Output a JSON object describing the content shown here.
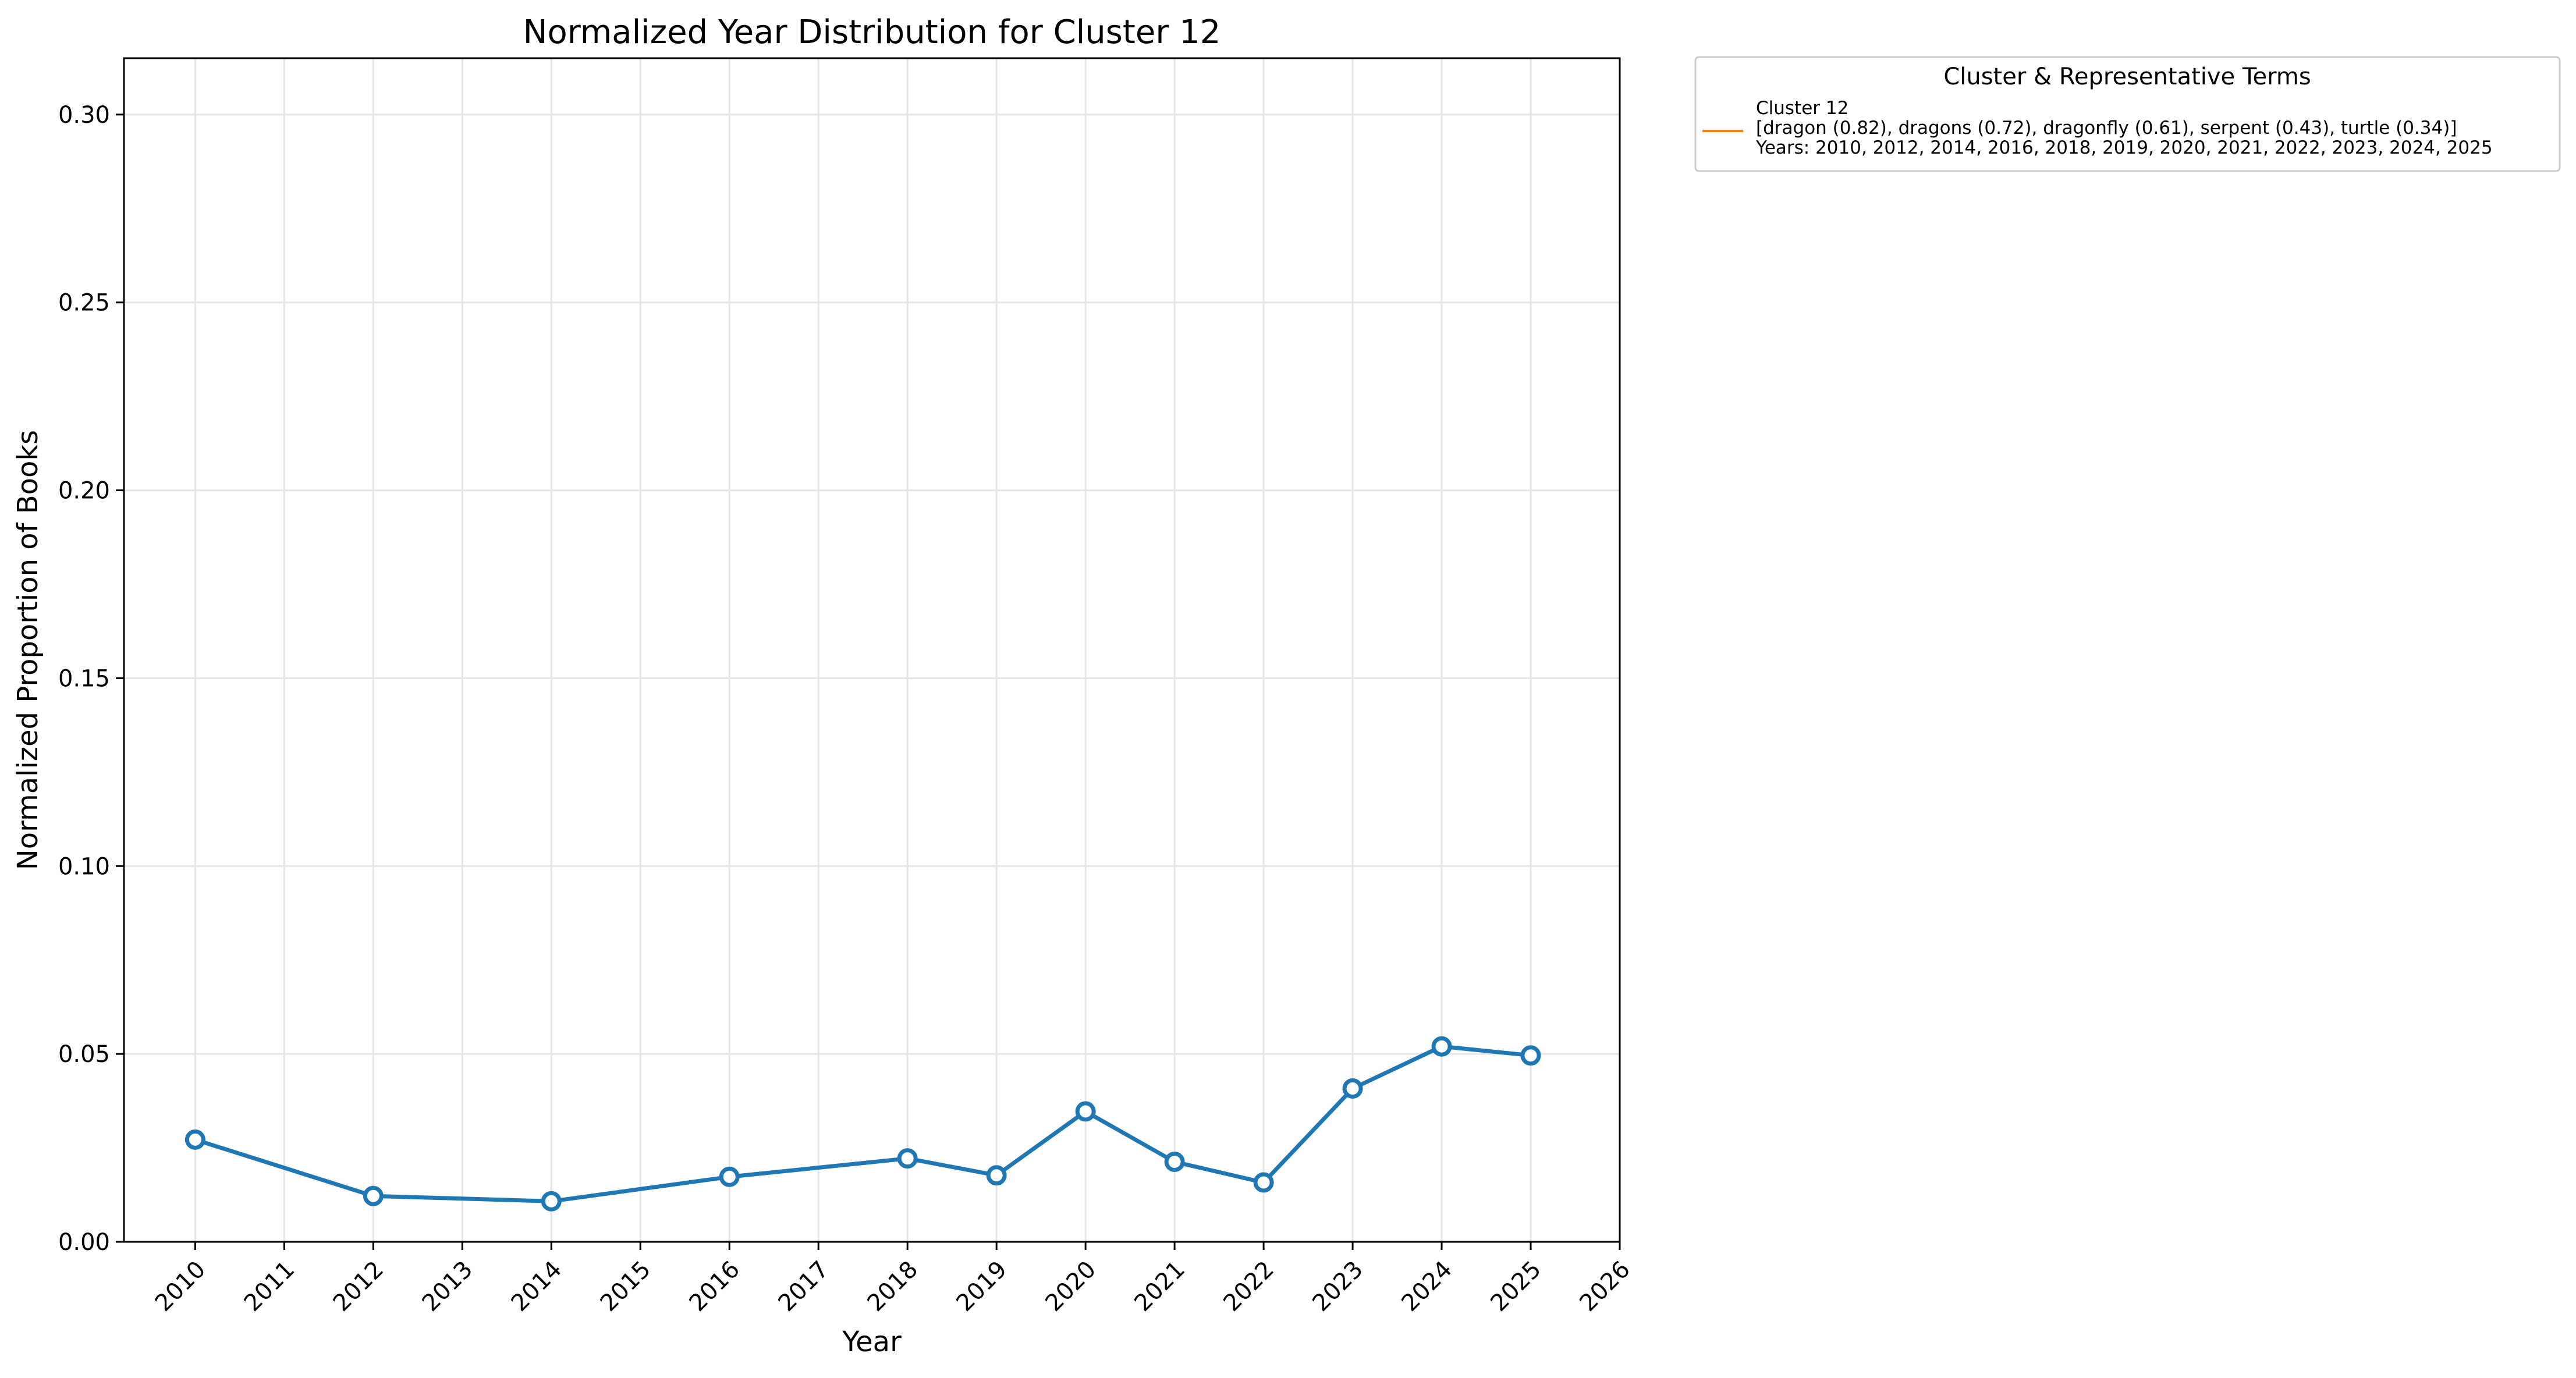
{
  "chart_data": {
    "type": "line",
    "title": "Normalized Year Distribution for Cluster 12",
    "xlabel": "Year",
    "ylabel": "Normalized Proportion of Books",
    "xlim": [
      2009.2,
      2026
    ],
    "ylim": [
      0,
      0.315
    ],
    "x_ticks": [
      2010,
      2011,
      2012,
      2013,
      2014,
      2015,
      2016,
      2017,
      2018,
      2019,
      2020,
      2021,
      2022,
      2023,
      2024,
      2025,
      2026
    ],
    "y_ticks": [
      0.0,
      0.05,
      0.1,
      0.15,
      0.2,
      0.25,
      0.3
    ],
    "x_tick_labels": [
      "2010",
      "2011",
      "2012",
      "2013",
      "2014",
      "2015",
      "2016",
      "2017",
      "2018",
      "2019",
      "2020",
      "2021",
      "2022",
      "2023",
      "2024",
      "2025",
      "2026"
    ],
    "y_tick_labels": [
      "0.00",
      "0.05",
      "0.10",
      "0.15",
      "0.20",
      "0.25",
      "0.30"
    ],
    "grid": true,
    "x_tick_rotation": 45,
    "legend": {
      "placement": "outside-top-right",
      "title": "Cluster & Representative Terms",
      "entries": [
        {
          "lines": [
            "Cluster 12",
            "[dragon (0.82), dragons (0.72), dragonfly (0.61), serpent (0.43), turtle (0.34)]",
            "Years: 2010, 2012, 2014, 2016, 2018, 2019, 2020, 2021, 2022, 2023, 2024, 2025"
          ],
          "color": "#ff7f0e"
        }
      ]
    },
    "series": [
      {
        "color": "#1f77b4",
        "marker": "open-circle",
        "x": [
          2010,
          2012,
          2014,
          2016,
          2018,
          2019,
          2020,
          2021,
          2022,
          2023,
          2024,
          2025
        ],
        "y": [
          0.0272,
          0.0122,
          0.0108,
          0.0173,
          0.0222,
          0.0177,
          0.0347,
          0.0213,
          0.0158,
          0.0408,
          0.052,
          0.0496
        ]
      }
    ]
  }
}
